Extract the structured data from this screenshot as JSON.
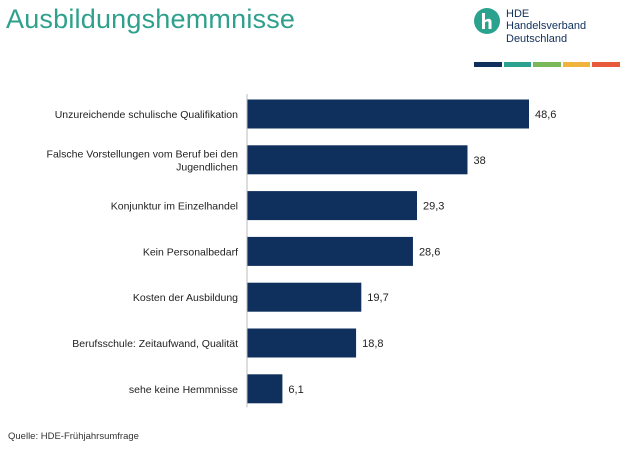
{
  "header": {
    "title": "Ausbildungshemmnisse"
  },
  "logo": {
    "abbr": "HDE",
    "line1": "Handelsverband",
    "line2": "Deutschland",
    "mark_color": "#2aa28e",
    "stripe_colors": [
      "#0f2f5c",
      "#2aa28e",
      "#7ab85a",
      "#f0b43c",
      "#e85a3c"
    ]
  },
  "chart_data": {
    "type": "bar",
    "orientation": "horizontal",
    "categories": [
      [
        "Unzureichende schulische Qualifikation"
      ],
      [
        "Falsche Vorstellungen vom Beruf bei den",
        "Jugendlichen"
      ],
      [
        "Konjunktur im Einzelhandel"
      ],
      [
        "Kein Personalbedarf"
      ],
      [
        "Kosten der Ausbildung"
      ],
      [
        "Berufsschule: Zeitaufwand, Qualität"
      ],
      [
        "sehe keine Hemmnisse"
      ]
    ],
    "values": [
      48.6,
      38,
      29.3,
      28.6,
      19.7,
      18.8,
      6.1
    ],
    "value_labels": [
      "48,6",
      "38",
      "29,3",
      "28,6",
      "19,7",
      "18,8",
      "6,1"
    ],
    "xlim": [
      0,
      50
    ],
    "bar_color": "#0f2f5c",
    "grid": false,
    "legend": "none"
  },
  "footer": {
    "source": "Quelle:  HDE-Frühjahrsumfrage"
  }
}
